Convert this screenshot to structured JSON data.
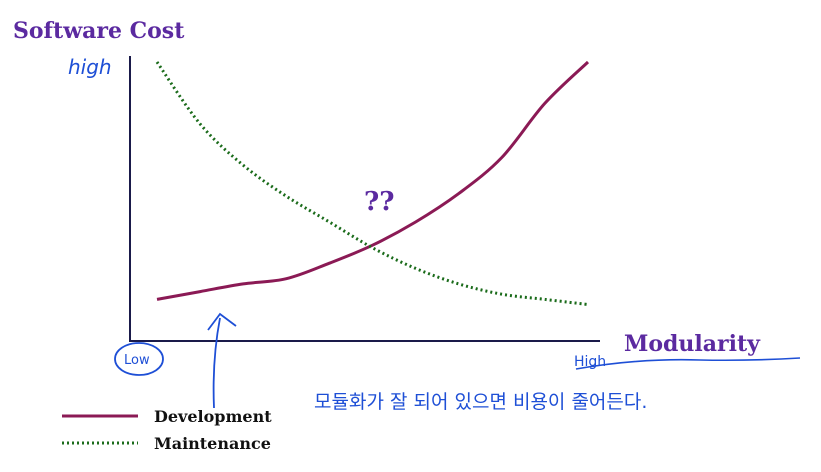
{
  "chart_data": {
    "type": "line",
    "ylabel": "Software Cost",
    "xlabel": "Modularity",
    "annotation": "??",
    "x": [
      0,
      0.1,
      0.2,
      0.3,
      0.4,
      0.5,
      0.6,
      0.7,
      0.8,
      0.9,
      1.0
    ],
    "series": [
      {
        "name": "Development",
        "color": "#8b1a55",
        "values": [
          0.08,
          0.11,
          0.14,
          0.16,
          0.22,
          0.29,
          0.38,
          0.49,
          0.63,
          0.84,
          1.0
        ]
      },
      {
        "name": "Maintenance",
        "color": "#1a6b1a",
        "values": [
          1.0,
          0.76,
          0.6,
          0.48,
          0.38,
          0.28,
          0.2,
          0.14,
          0.1,
          0.08,
          0.06
        ]
      }
    ],
    "legend_position": "bottom-left"
  },
  "handwritten": {
    "y_high": "high",
    "x_low": "Low",
    "x_high": "High",
    "note": "모듈화가 잘 되어 있으면 비용이 줄어든다."
  },
  "colors": {
    "title": "#5b2aa0",
    "ink": "#1e4fd6",
    "axis": "#1a1a4a"
  }
}
